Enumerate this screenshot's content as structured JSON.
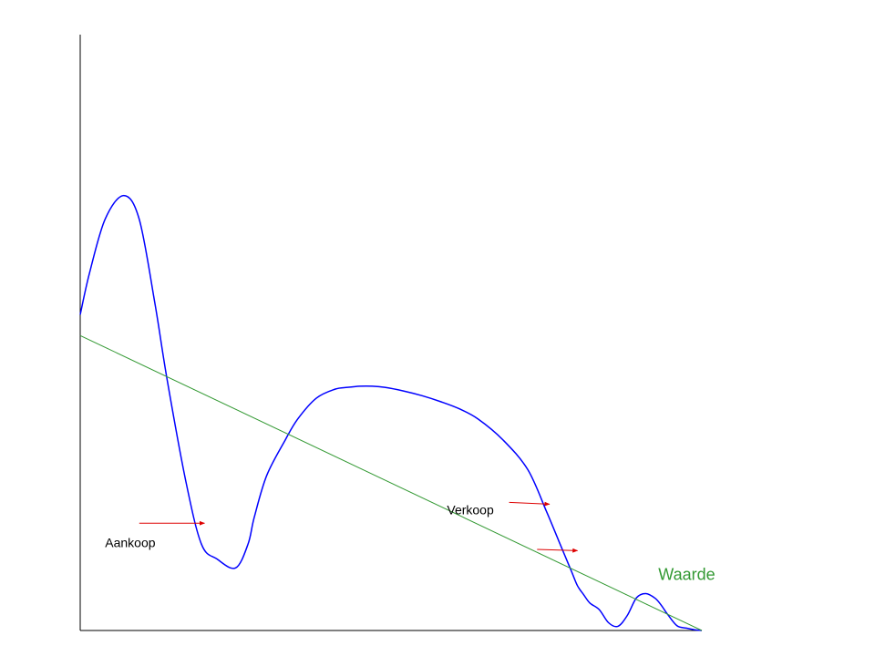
{
  "chart_data": {
    "type": "line",
    "title": "",
    "xlabel": "",
    "ylabel": "",
    "grid": false,
    "xlim": [
      0,
      100
    ],
    "ylim": [
      0,
      100
    ],
    "series": [
      {
        "name": "",
        "color": "#0000ff",
        "x": [
          0,
          1.5,
          4,
          7,
          9.5,
          12,
          14,
          17,
          19.5,
          22,
          25,
          27,
          28,
          30,
          33,
          35,
          38,
          41,
          43,
          45,
          47,
          49,
          52,
          55,
          58,
          61,
          64,
          68,
          72,
          75,
          77,
          79,
          80,
          81,
          82,
          83.5,
          85,
          86.5,
          88,
          89.5,
          91,
          92.5,
          93.5,
          94.5,
          96,
          97.5,
          99,
          100
        ],
        "y": [
          53,
          60,
          69,
          73,
          69,
          55,
          42,
          25,
          14.5,
          12,
          10.5,
          14.5,
          19,
          26,
          32,
          35.5,
          39,
          40.5,
          40.8,
          41,
          41,
          40.8,
          40.2,
          39.4,
          38.4,
          37.2,
          35.5,
          32,
          27,
          20,
          15,
          10,
          7.5,
          6,
          4.6,
          3.5,
          1.3,
          0.7,
          2.5,
          5.5,
          6.2,
          5.4,
          4.2,
          2.7,
          0.8,
          0.4,
          0.1,
          0
        ]
      },
      {
        "name": "",
        "color": "#339933",
        "x": [
          0,
          100
        ],
        "y": [
          49.5,
          0
        ]
      }
    ],
    "annotations": [
      {
        "text": "Aankoop",
        "x": 4,
        "y": 14,
        "color": "#000000"
      },
      {
        "text": "Verkoop",
        "x": 59,
        "y": 19.5,
        "color": "#000000"
      },
      {
        "text": "Waarde",
        "x": 93,
        "y": 8.5,
        "color": "#339933"
      }
    ],
    "arrows": [
      {
        "color": "#dd0000",
        "from": [
          9.5,
          18
        ],
        "to": [
          20,
          18
        ]
      },
      {
        "color": "#dd0000",
        "from": [
          69,
          21.5
        ],
        "to": [
          75.5,
          21.2
        ]
      },
      {
        "color": "#dd0000",
        "from": [
          73.5,
          13.6
        ],
        "to": [
          80,
          13.4
        ]
      }
    ]
  }
}
